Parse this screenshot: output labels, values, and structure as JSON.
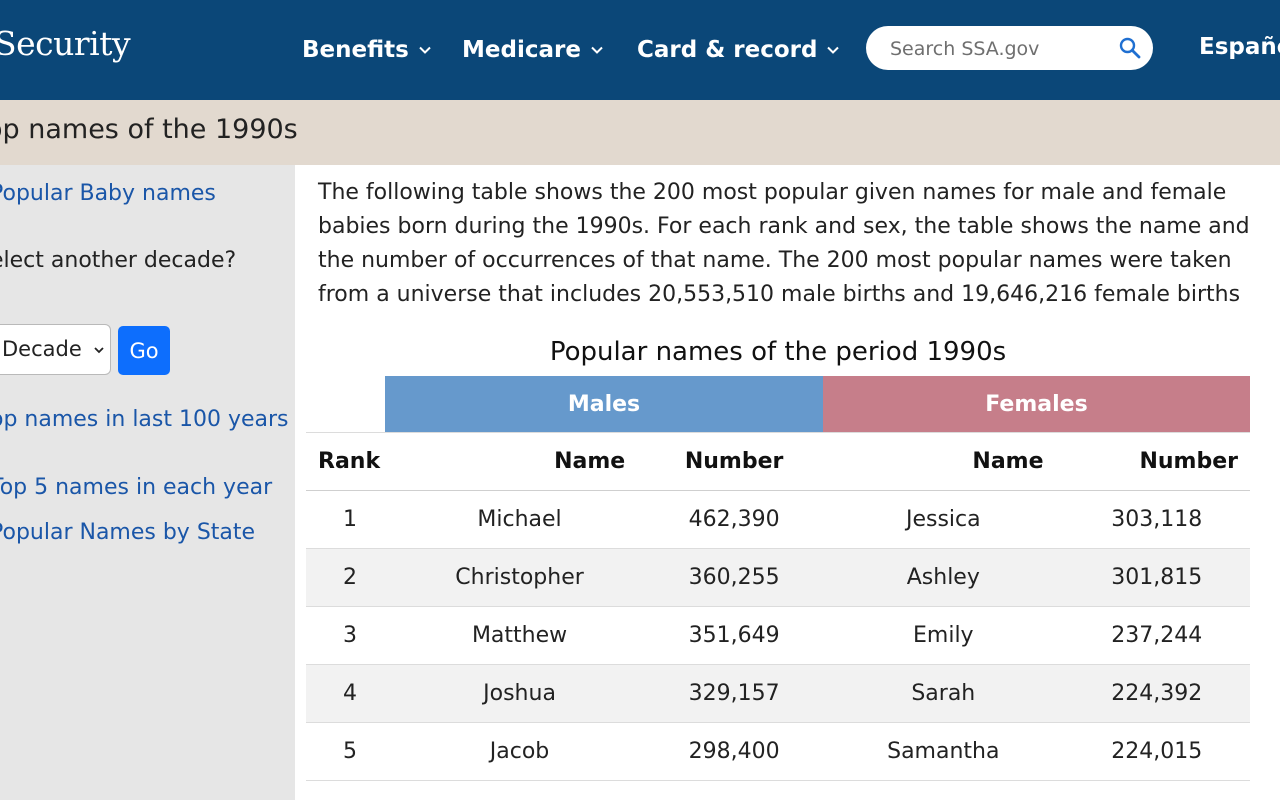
{
  "header": {
    "logo_text": "Security",
    "nav": [
      {
        "label": "Benefits",
        "icon": "chevron-down-icon"
      },
      {
        "label": "Medicare",
        "icon": "chevron-down-icon"
      },
      {
        "label": "Card & record",
        "icon": "chevron-down-icon"
      }
    ],
    "search_placeholder": "Search SSA.gov",
    "search_icon": "search-icon",
    "language_label": "Españo"
  },
  "page": {
    "title": "op names of the 1990s"
  },
  "sidebar": {
    "popular_baby_names": "Popular Baby names",
    "select_prompt": "elect another decade?",
    "decade_select_value": "Decade",
    "go_label": "Go",
    "top_names_100": "op names in last 100 years",
    "top5_each_year": "Top 5 names in each year",
    "by_state": "Popular Names by State"
  },
  "main": {
    "intro_lines": [
      "The following table shows the 200 most popular given names for male and female",
      "babies born during the 1990s. For each rank and sex, the table shows the name and",
      "the number of occurrences of that name. The 200 most popular names were taken",
      "from a universe that includes 20,553,510 male births and 19,646,216 female births"
    ],
    "table_title": "Popular names of the period 1990s",
    "group_males": "Males",
    "group_females": "Females",
    "columns": {
      "rank": "Rank",
      "male_name": "Name",
      "male_number": "Number",
      "female_name": "Name",
      "female_number": "Number"
    },
    "rows": [
      {
        "rank": "1",
        "male_name": "Michael",
        "male_number": "462,390",
        "female_name": "Jessica",
        "female_number": "303,118"
      },
      {
        "rank": "2",
        "male_name": "Christopher",
        "male_number": "360,255",
        "female_name": "Ashley",
        "female_number": "301,815"
      },
      {
        "rank": "3",
        "male_name": "Matthew",
        "male_number": "351,649",
        "female_name": "Emily",
        "female_number": "237,244"
      },
      {
        "rank": "4",
        "male_name": "Joshua",
        "male_number": "329,157",
        "female_name": "Sarah",
        "female_number": "224,392"
      },
      {
        "rank": "5",
        "male_name": "Jacob",
        "male_number": "298,400",
        "female_name": "Samantha",
        "female_number": "224,015"
      }
    ]
  },
  "colors": {
    "header_bg": "#0b4778",
    "title_band_bg": "#e2d9cf",
    "sidebar_bg": "#e6e6e6",
    "link": "#1a56a8",
    "go_button": "#0d6efd",
    "males_header": "#6699cc",
    "females_header": "#c67e8a"
  }
}
